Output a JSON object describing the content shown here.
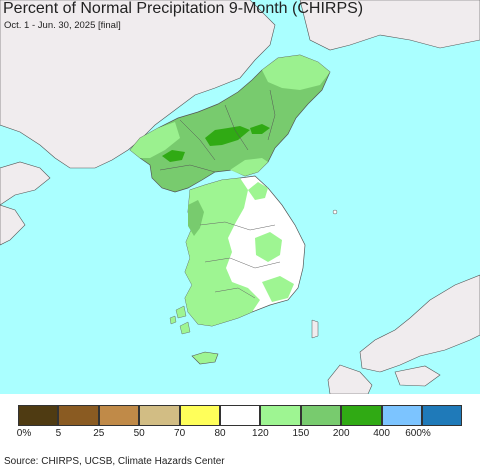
{
  "title": "Percent of Normal Precipitation 9-Month (CHIRPS)",
  "subtitle": "Oct. 1 - Jun. 30, 2025 [final]",
  "colors": {
    "ocean": "#aaffff",
    "land_outside": "#f0ecee",
    "border": "#555555"
  },
  "legend": {
    "items": [
      {
        "color": "#4f3b12",
        "label": "0%"
      },
      {
        "color": "#8a5b22",
        "label": "5"
      },
      {
        "color": "#c08a48",
        "label": "25"
      },
      {
        "color": "#d2bd84",
        "label": "50"
      },
      {
        "color": "#ffff5a",
        "label": "70"
      },
      {
        "color": "#ffffff",
        "label": "80"
      },
      {
        "color": "#9ef592",
        "label": "120"
      },
      {
        "color": "#78cb6e",
        "label": "150"
      },
      {
        "color": "#30aa14",
        "label": "200"
      },
      {
        "color": "#7cc4ff",
        "label": "400"
      },
      {
        "color": "#1f7ab9",
        "label": "600%"
      }
    ]
  },
  "source": "Source: CHIRPS, UCSB, Climate Hazards Center"
}
